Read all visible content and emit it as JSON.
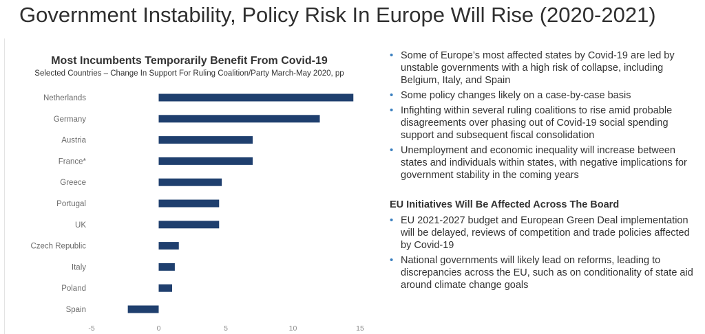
{
  "page": {
    "title": "Government Instability, Policy Risk In Europe Will Rise (2020-2021)"
  },
  "chart_data": {
    "type": "bar",
    "orientation": "horizontal",
    "title": "Most Incumbents Temporarily Benefit From Covid-19",
    "subtitle": "Selected Countries – Change In Support For Ruling Coalition/Party March-May 2020, pp",
    "categories": [
      "Netherlands",
      "Germany",
      "Austria",
      "France*",
      "Greece",
      "Portugal",
      "UK",
      "Czech Republic",
      "Italy",
      "Poland",
      "Spain"
    ],
    "values": [
      14.5,
      12,
      7,
      7,
      4.7,
      4.5,
      4.5,
      1.5,
      1.2,
      1,
      -2.3
    ],
    "xlim": [
      -5,
      15
    ],
    "xticks": [
      -5,
      0,
      5,
      10,
      15
    ],
    "xlabel": "",
    "ylabel": "",
    "grid": false,
    "bar_color": "#1f3f6e"
  },
  "right_panel": {
    "bullets_1": [
      "Some of Europe’s most affected states by Covid-19 are led by unstable governments with a high risk of collapse, including Belgium, Italy, and Spain",
      "Some policy changes likely on a case-by-case basis",
      "Infighting within several ruling coalitions to rise amid probable disagreements over phasing out of Covid-19 social spending support and subsequent fiscal consolidation",
      "Unemployment and economic inequality will increase between states and individuals within states, with negative implications for government stability in the coming years"
    ],
    "section_heading": "EU Initiatives Will Be Affected Across The Board",
    "bullets_2": [
      "EU 2021-2027 budget and European Green Deal implementation will be delayed, reviews of competition and trade policies affected by Covid-19",
      "National governments will likely lead on reforms, leading to discrepancies across the EU, such as on conditionality of state aid around climate change goals"
    ]
  },
  "colors": {
    "accent_bullet": "#3a7fbf",
    "bar": "#1f3f6e"
  }
}
